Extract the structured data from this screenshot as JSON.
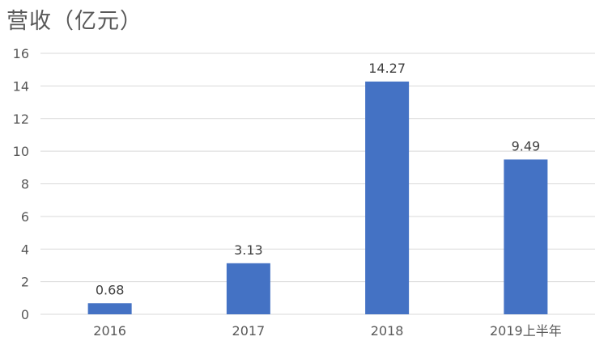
{
  "chart_data": {
    "type": "bar",
    "title": "营收（亿元）",
    "categories": [
      "2016",
      "2017",
      "2018",
      "2019上半年"
    ],
    "values": [
      0.68,
      3.13,
      14.27,
      9.49
    ],
    "value_labels": [
      "0.68",
      "3.13",
      "14.27",
      "9.49"
    ],
    "y_ticks": [
      "0",
      "2",
      "4",
      "6",
      "8",
      "10",
      "12",
      "14",
      "16"
    ],
    "ylim": [
      0,
      16
    ],
    "xlabel": "",
    "ylabel": "",
    "grid": true,
    "legend": "none",
    "colors": {
      "bar": "#4472c4"
    }
  }
}
